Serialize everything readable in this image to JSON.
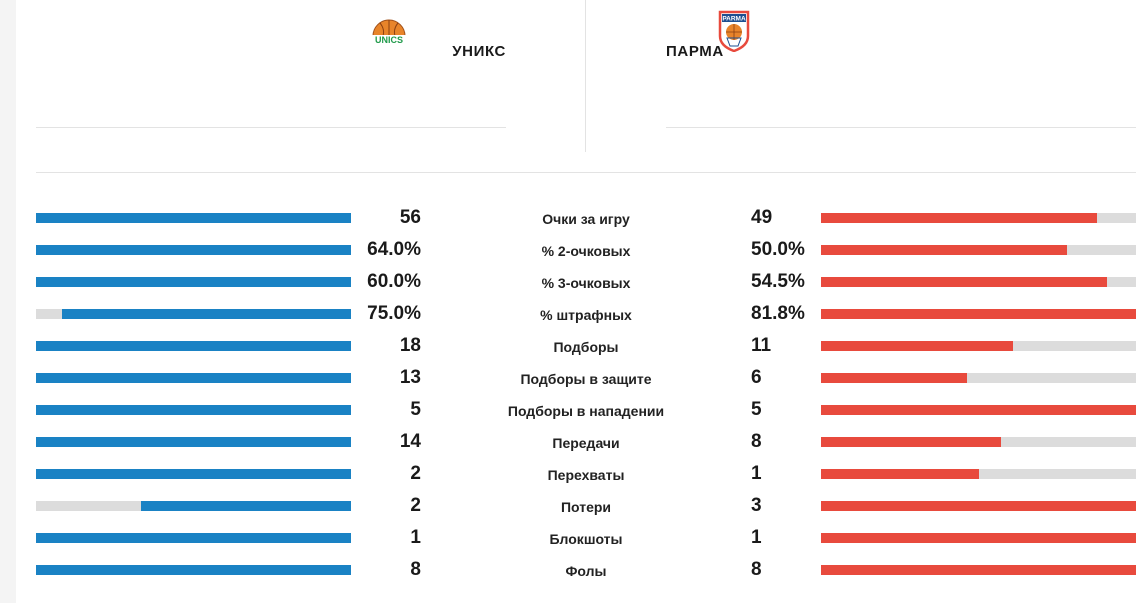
{
  "teams": {
    "home": {
      "name": "УНИКС",
      "logo": "unics-basketball-logo",
      "logo_text": "UNICS",
      "color": "#1a82c4"
    },
    "away": {
      "name": "ПАРМА",
      "logo": "parma-basketball-logo",
      "logo_text": "PARMA",
      "color": "#e84a3d"
    }
  },
  "stats": [
    {
      "label": "Очки за игру",
      "home": "56",
      "away": "49",
      "home_share": 1.0,
      "away_share": 0.875
    },
    {
      "label": "% 2-очковых",
      "home": "64.0%",
      "away": "50.0%",
      "home_share": 1.0,
      "away_share": 0.781
    },
    {
      "label": "% 3-очковых",
      "home": "60.0%",
      "away": "54.5%",
      "home_share": 1.0,
      "away_share": 0.908
    },
    {
      "label": "% штрафных",
      "home": "75.0%",
      "away": "81.8%",
      "home_share": 0.917,
      "away_share": 1.0
    },
    {
      "label": "Подборы",
      "home": "18",
      "away": "11",
      "home_share": 1.0,
      "away_share": 0.611
    },
    {
      "label": "Подборы в защите",
      "home": "13",
      "away": "6",
      "home_share": 1.0,
      "away_share": 0.462
    },
    {
      "label": "Подборы в нападении",
      "home": "5",
      "away": "5",
      "home_share": 1.0,
      "away_share": 1.0
    },
    {
      "label": "Передачи",
      "home": "14",
      "away": "8",
      "home_share": 1.0,
      "away_share": 0.571
    },
    {
      "label": "Перехваты",
      "home": "2",
      "away": "1",
      "home_share": 1.0,
      "away_share": 0.5
    },
    {
      "label": "Потери",
      "home": "2",
      "away": "3",
      "home_share": 0.667,
      "away_share": 1.0
    },
    {
      "label": "Блокшоты",
      "home": "1",
      "away": "1",
      "home_share": 1.0,
      "away_share": 1.0
    },
    {
      "label": "Фолы",
      "home": "8",
      "away": "8",
      "home_share": 1.0,
      "away_share": 1.0
    }
  ]
}
